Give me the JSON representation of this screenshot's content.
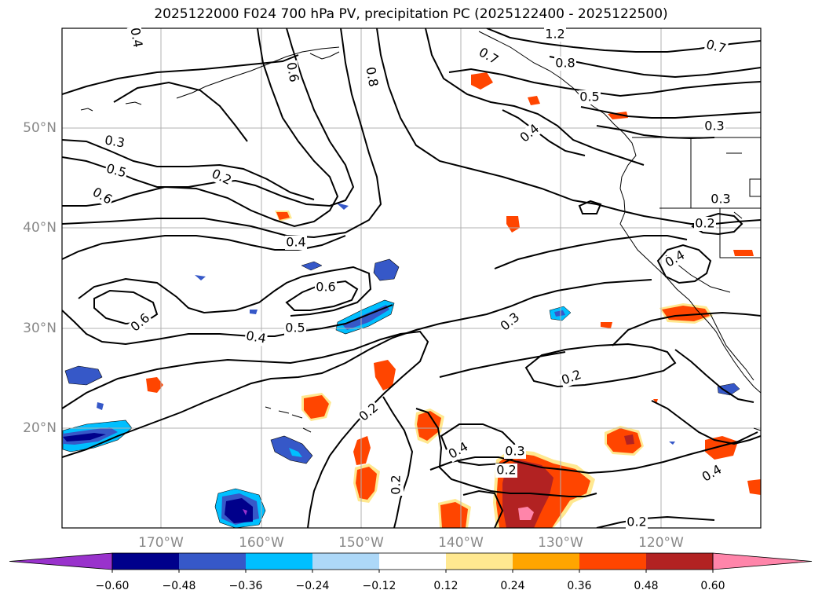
{
  "title": "2025122000 F024 700 hPa PV, precipitation PC (2025122400 - 2025122500)",
  "map": {
    "lat_labels": [
      "50°N",
      "40°N",
      "30°N",
      "20°N"
    ],
    "lon_labels": [
      "170°W",
      "160°W",
      "150°W",
      "140°W",
      "130°W",
      "120°W"
    ],
    "contour_labels": [
      "0.4",
      "1.2",
      "0.7",
      "0.6",
      "0.8",
      "0.7",
      "0.8",
      "0.5",
      "0.4",
      "0.3",
      "0.3",
      "0.5",
      "0.6",
      "0.2",
      "0.3",
      "0.2",
      "0.4",
      "0.4",
      "0.6",
      "0.6",
      "0.5",
      "0.4",
      "0.3",
      "0.2",
      "0.2",
      "0.4",
      "0.4",
      "0.3",
      "0.2",
      "0.2",
      "0.2"
    ],
    "contour_colour": "#000000"
  },
  "colorbar": {
    "tick_labels": [
      "−0.60",
      "−0.48",
      "−0.36",
      "−0.24",
      "−0.12",
      "0.12",
      "0.24",
      "0.36",
      "0.48",
      "0.60"
    ],
    "colors": [
      "#9932cc",
      "#00008b",
      "#3658c8",
      "#00bfff",
      "#add8f8",
      "#ffffff",
      "#ffe890",
      "#ffa500",
      "#ff4500",
      "#b22222",
      "#ff85aa"
    ]
  }
}
